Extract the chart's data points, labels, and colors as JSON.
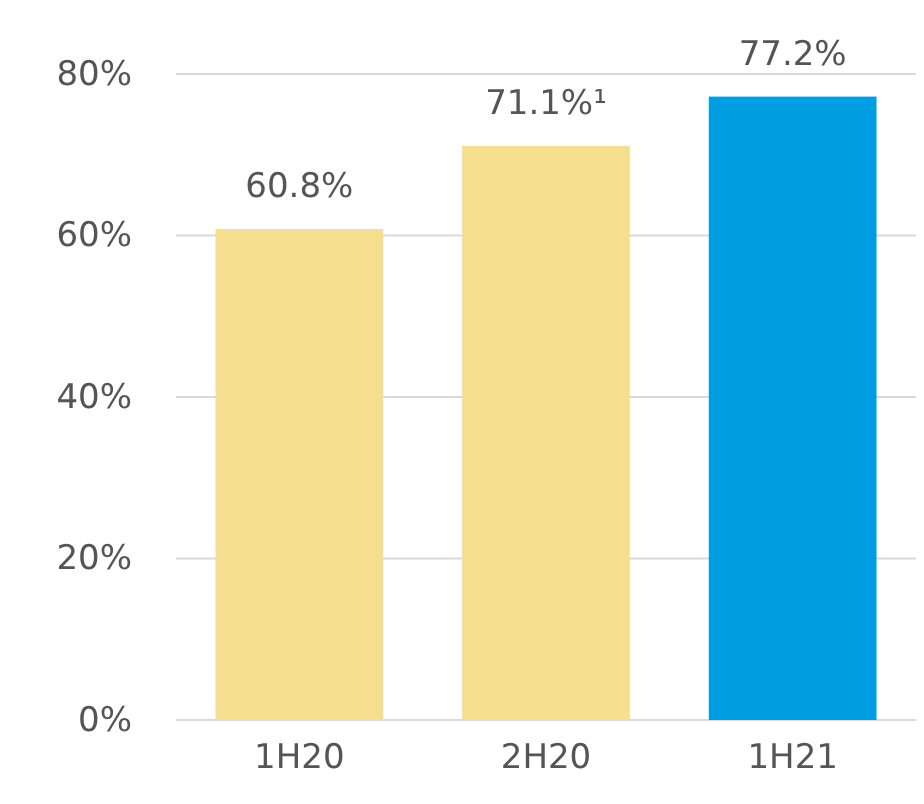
{
  "chart_data": {
    "type": "bar",
    "categories": [
      "1H20",
      "2H20",
      "1H21"
    ],
    "values": [
      60.8,
      71.1,
      77.2
    ],
    "colors": [
      "#f5df8e",
      "#f5df8e",
      "#009ee0"
    ],
    "value_labels": [
      "60.8%",
      "71.1%¹",
      "77.2%"
    ],
    "ylim": [
      0,
      80
    ],
    "yticks": [
      {
        "value": 0,
        "label": "0%"
      },
      {
        "value": 20,
        "label": "20%"
      },
      {
        "value": 40,
        "label": "40%"
      },
      {
        "value": 60,
        "label": "60%"
      },
      {
        "value": 80,
        "label": "80%"
      }
    ],
    "grid": "y"
  }
}
